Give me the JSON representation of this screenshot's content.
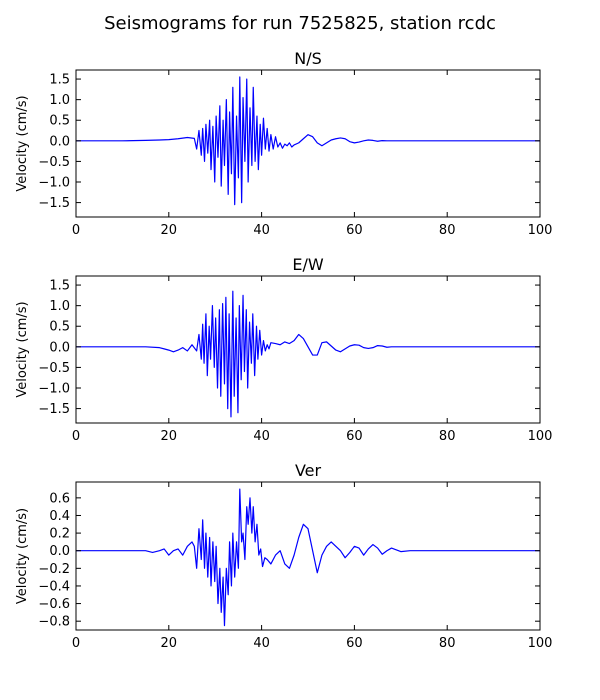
{
  "figure": {
    "title": "Seismograms for run 7525825, station rcdc"
  },
  "colors": {
    "trace": "#0000ff",
    "background": "#ffffff",
    "axes": "#000000"
  },
  "chart_data": [
    {
      "type": "line",
      "title": "N/S",
      "xlabel": "",
      "ylabel": "Velocity (cm/s)",
      "xlim": [
        0,
        100
      ],
      "ylim": [
        -1.85,
        1.72
      ],
      "xticks": [
        0,
        20,
        40,
        60,
        80,
        100
      ],
      "xtick_labels": [
        "0",
        "20",
        "40",
        "60",
        "80",
        "100"
      ],
      "yticks": [
        -1.5,
        -1.0,
        -0.5,
        0.0,
        0.5,
        1.0,
        1.5
      ],
      "ytick_labels": [
        "−1.5",
        "−1.0",
        "−0.5",
        "0.0",
        "0.5",
        "1.0",
        "1.5"
      ],
      "grid": false,
      "series": [
        {
          "x": [
            0,
            10,
            15,
            18,
            20,
            22,
            24,
            25.5,
            26,
            26.5,
            27,
            27.3,
            27.7,
            28,
            28.4,
            28.8,
            29.1,
            29.5,
            29.9,
            30.2,
            30.6,
            31,
            31.3,
            31.7,
            32,
            32.4,
            32.8,
            33.1,
            33.5,
            33.8,
            34.2,
            34.6,
            35,
            35.3,
            35.7,
            36,
            36.4,
            36.8,
            37.1,
            37.5,
            37.9,
            38.2,
            38.6,
            39,
            39.3,
            39.7,
            40,
            40.4,
            40.8,
            41.2,
            41.6,
            42,
            42.5,
            43,
            43.5,
            44,
            44.5,
            45,
            45.5,
            46,
            46.5,
            47,
            48,
            49,
            50,
            51,
            52,
            53,
            54,
            55,
            56,
            57,
            58,
            59,
            60,
            61,
            62,
            63,
            64,
            65,
            66,
            67,
            68,
            70,
            75,
            80,
            90,
            100
          ],
          "y": [
            0,
            0,
            0.01,
            0.02,
            0.03,
            0.05,
            0.08,
            0.06,
            -0.2,
            0.25,
            -0.35,
            0.3,
            -0.5,
            0.4,
            -0.3,
            0.5,
            -0.7,
            0.35,
            -1.0,
            0.6,
            -0.4,
            0.85,
            -1.1,
            0.5,
            -0.6,
            1.0,
            -1.3,
            0.7,
            -0.8,
            1.3,
            -1.55,
            0.6,
            -0.9,
            1.55,
            -1.5,
            1.05,
            -0.5,
            1.5,
            -1.0,
            0.8,
            -0.6,
            1.3,
            -0.5,
            0.6,
            -0.7,
            0.4,
            -0.35,
            0.55,
            -0.2,
            0.3,
            -0.25,
            0.15,
            -0.2,
            0.1,
            -0.15,
            -0.05,
            -0.18,
            -0.08,
            -0.12,
            -0.05,
            -0.15,
            -0.1,
            -0.05,
            0.05,
            0.15,
            0.1,
            -0.05,
            -0.12,
            -0.05,
            0.02,
            0.05,
            0.07,
            0.05,
            -0.02,
            -0.05,
            -0.03,
            0,
            0.02,
            0.01,
            -0.01,
            0.005,
            0,
            0,
            0,
            0,
            0,
            0,
            0
          ]
        }
      ]
    },
    {
      "type": "line",
      "title": "E/W",
      "xlabel": "",
      "ylabel": "Velocity (cm/s)",
      "xlim": [
        0,
        100
      ],
      "ylim": [
        -1.85,
        1.72
      ],
      "xticks": [
        0,
        20,
        40,
        60,
        80,
        100
      ],
      "xtick_labels": [
        "0",
        "20",
        "40",
        "60",
        "80",
        "100"
      ],
      "yticks": [
        -1.5,
        -1.0,
        -0.5,
        0.0,
        0.5,
        1.0,
        1.5
      ],
      "ytick_labels": [
        "−1.5",
        "−1.0",
        "−0.5",
        "0.0",
        "0.5",
        "1.0",
        "1.5"
      ],
      "grid": false,
      "series": [
        {
          "x": [
            0,
            10,
            15,
            18,
            19,
            20,
            21,
            22,
            23,
            24,
            25,
            26,
            26.5,
            27,
            27.3,
            27.6,
            28,
            28.3,
            28.7,
            29,
            29.4,
            29.8,
            30.1,
            30.5,
            30.9,
            31.2,
            31.6,
            32,
            32.3,
            32.7,
            33,
            33.4,
            33.8,
            34.1,
            34.5,
            34.9,
            35.2,
            35.6,
            36,
            36.3,
            36.7,
            37,
            37.4,
            37.8,
            38.1,
            38.5,
            38.9,
            39.2,
            39.6,
            40,
            40.4,
            40.8,
            41.2,
            41.6,
            42,
            43,
            44,
            45,
            46,
            47,
            48,
            49,
            50,
            51,
            52,
            53,
            54,
            55,
            56,
            57,
            58,
            59,
            60,
            61,
            62,
            63,
            64,
            65,
            66,
            67,
            68,
            70,
            75,
            80,
            90,
            100
          ],
          "y": [
            0,
            0,
            0,
            -0.02,
            -0.05,
            -0.08,
            -0.12,
            -0.08,
            -0.02,
            -0.1,
            0.05,
            -0.1,
            0.3,
            -0.3,
            0.55,
            -0.4,
            0.8,
            -0.7,
            0.5,
            -0.3,
            1.0,
            -0.5,
            0.7,
            -1.0,
            0.9,
            -1.2,
            1.05,
            -0.9,
            1.2,
            -1.5,
            0.8,
            -1.7,
            1.35,
            -1.2,
            0.7,
            -1.6,
            1.0,
            -0.8,
            1.25,
            -0.6,
            0.9,
            -1.0,
            0.6,
            -0.4,
            0.8,
            -0.7,
            0.5,
            -0.3,
            0.4,
            -0.2,
            0.15,
            -0.1,
            0.05,
            -0.05,
            0.1,
            0.08,
            0.05,
            0.12,
            0.08,
            0.15,
            0.3,
            0.2,
            0,
            -0.2,
            -0.2,
            0.1,
            0.12,
            0.02,
            -0.08,
            -0.12,
            -0.05,
            0.02,
            0.05,
            0.04,
            -0.02,
            -0.04,
            -0.02,
            0.03,
            0.02,
            -0.01,
            0,
            0,
            0,
            0,
            0,
            0
          ]
        }
      ]
    },
    {
      "type": "line",
      "title": "Ver",
      "xlabel": "",
      "ylabel": "Velocity (cm/s)",
      "xlim": [
        0,
        100
      ],
      "ylim": [
        -0.9,
        0.78
      ],
      "xticks": [
        0,
        20,
        40,
        60,
        80,
        100
      ],
      "xtick_labels": [
        "0",
        "20",
        "40",
        "60",
        "80",
        "100"
      ],
      "yticks": [
        -0.8,
        -0.6,
        -0.4,
        -0.2,
        0.0,
        0.2,
        0.4,
        0.6
      ],
      "ytick_labels": [
        "−0.8",
        "−0.6",
        "−0.4",
        "−0.2",
        "0.0",
        "0.2",
        "0.4",
        "0.6"
      ],
      "grid": false,
      "series": [
        {
          "x": [
            0,
            10,
            15,
            16.5,
            18,
            19,
            20,
            21,
            22,
            23,
            24,
            25,
            25.5,
            26,
            26.5,
            27,
            27.3,
            27.7,
            28,
            28.4,
            28.8,
            29.1,
            29.5,
            29.9,
            30.2,
            30.6,
            31,
            31.3,
            31.7,
            32,
            32.4,
            32.8,
            33.1,
            33.5,
            33.8,
            34.2,
            34.6,
            35,
            35.3,
            35.7,
            36,
            36.4,
            36.8,
            37.1,
            37.5,
            37.9,
            38.2,
            38.6,
            39,
            39.4,
            39.8,
            40.2,
            40.7,
            41.2,
            42,
            43,
            44,
            45,
            46,
            47,
            48,
            49,
            50,
            51,
            52,
            53,
            54,
            55,
            56,
            57,
            58,
            59,
            60,
            61,
            62,
            63,
            64,
            65,
            66,
            67,
            68,
            69,
            70,
            72,
            75,
            80,
            90,
            100
          ],
          "y": [
            0,
            0,
            0,
            -0.02,
            0,
            0.02,
            -0.05,
            0,
            0.02,
            -0.05,
            0.05,
            0.1,
            0.05,
            -0.2,
            0.25,
            -0.1,
            0.35,
            -0.2,
            0.2,
            -0.3,
            0.15,
            -0.4,
            0.1,
            -0.35,
            0.05,
            -0.6,
            -0.2,
            -0.7,
            -0.3,
            -0.85,
            -0.2,
            -0.5,
            0.1,
            -0.4,
            0.2,
            -0.3,
            0.1,
            -0.2,
            0.7,
            0.1,
            0.2,
            -0.1,
            0.5,
            0.3,
            0.6,
            0.2,
            0.5,
            0.1,
            0.3,
            -0.05,
            0.02,
            -0.18,
            -0.08,
            -0.1,
            -0.15,
            -0.05,
            0,
            -0.15,
            -0.2,
            -0.05,
            0.15,
            0.3,
            0.25,
            0,
            -0.25,
            -0.05,
            0.05,
            0.1,
            0.05,
            0,
            -0.08,
            -0.02,
            0.05,
            0.03,
            -0.05,
            0.02,
            0.07,
            0.03,
            -0.04,
            0,
            0.03,
            0.01,
            -0.01,
            0,
            0,
            0,
            0,
            0
          ]
        }
      ]
    }
  ]
}
